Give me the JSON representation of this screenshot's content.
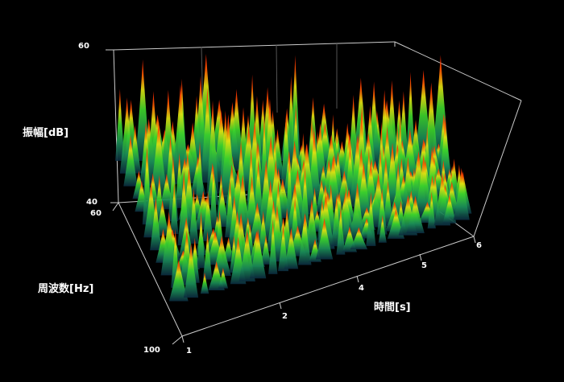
{
  "chart_data": {
    "type": "surface3d",
    "title": "",
    "z_axis": {
      "label": "振幅[dB]",
      "ticks": [
        "60",
        "40"
      ],
      "range": [
        40,
        60
      ]
    },
    "y_axis": {
      "label": "周波数[Hz]",
      "ticks": [
        "60",
        "100"
      ],
      "range": [
        60,
        100
      ]
    },
    "x_axis": {
      "label": "時間[s]",
      "ticks": [
        "1",
        "2",
        "4",
        "5",
        "6"
      ],
      "range": [
        1,
        6
      ]
    },
    "grid": false,
    "colormap": [
      "#0b3a5e",
      "#1f8f4a",
      "#34d12e",
      "#d8e60e",
      "#ff2a00"
    ],
    "background": "#000000",
    "box_color": "#cccccc"
  }
}
